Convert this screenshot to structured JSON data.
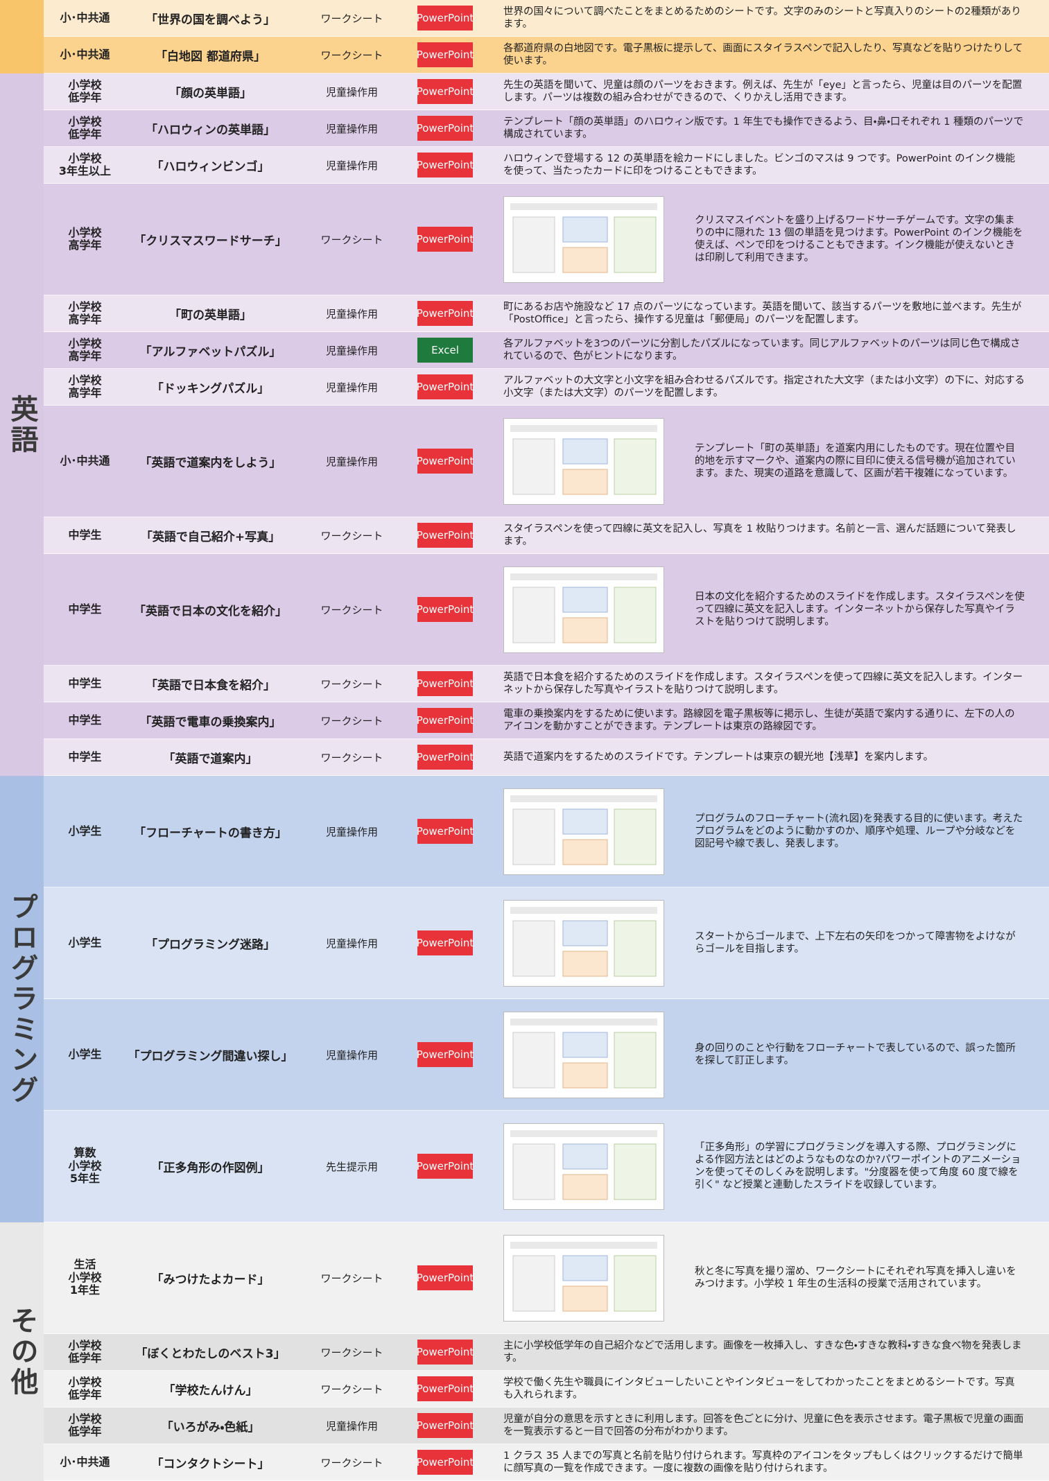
{
  "sections": [
    {
      "rows": [
        {
          "level": "小･中共通",
          "title": "「世界の国を調べよう」",
          "type": "ワークシート",
          "app": "PowerPoint",
          "description": "世界の国々について調べたことをまとめるためのシートです。文字のみのシートと写真入りのシートの2種類があります。"
        },
        {
          "level": "小･中共通",
          "title": "「白地図 都道府県」",
          "type": "ワークシート",
          "app": "PowerPoint",
          "description": "各都道府県の白地図です。電子黒板に提示して、画面にスタイラスペンで記入したり、写真などを貼りつけたりして使います。"
        }
      ]
    },
    {
      "label": "英語",
      "rows": [
        {
          "level": "小学校\n低学年",
          "title": "「顔の英単語」",
          "type": "児童操作用",
          "app": "PowerPoint",
          "description": "先生の英語を聞いて、児童は顔のパーツをおきます。例えば、先生が「eye」と言ったら、児童は目のパーツを配置します。パーツは複数の組み合わせができるので、くりかえし活用できます。"
        },
        {
          "level": "小学校\n低学年",
          "title": "「ハロウィンの英単語」",
          "type": "児童操作用",
          "app": "PowerPoint",
          "description": "テンプレート「顔の英単語」のハロウィン版です。1 年生でも操作できるよう、目・鼻・口それぞれ 1 種類のパーツで構成されています。"
        },
        {
          "level": "小学校\n3年生以上",
          "title": "「ハロウィンビンゴ」",
          "type": "児童操作用",
          "app": "PowerPoint",
          "description": "ハロウィンで登場する 12 の英単語を絵カードにしました。ビンゴのマスは 9 つです。PowerPoint のインク機能を使って、当たったカードに印をつけることもできます。"
        },
        {
          "level": "小学校\n高学年",
          "title": "「クリスマスワードサーチ」",
          "type": "ワークシート",
          "app": "PowerPoint",
          "thumbnail": true,
          "description": "クリスマスイベントを盛り上げるワードサーチゲームです。文字の集まりの中に隠れた 13 個の単語を見つけます。PowerPoint のインク機能を使えば、ペンで印をつけることもできます。インク機能が使えないときは印刷して利用できます。"
        },
        {
          "level": "小学校\n高学年",
          "title": "「町の英単語」",
          "type": "児童操作用",
          "app": "PowerPoint",
          "description": "町にあるお店や施設など 17 点のパーツになっています。英語を聞いて、該当するパーツを敷地に並べます。先生が「PostOffice」と言ったら、操作する児童は「郵便局」のパーツを配置します。"
        },
        {
          "level": "小学校\n高学年",
          "title": "「アルファベットパズル」",
          "type": "児童操作用",
          "app": "Excel",
          "description": "各アルファベットを3つのパーツに分割したパズルになっています。同じアルファベットのパーツは同じ色で構成されているので、色がヒントになります。"
        },
        {
          "level": "小学校\n高学年",
          "title": "「ドッキングパズル」",
          "type": "児童操作用",
          "app": "PowerPoint",
          "description": "アルファベットの大文字と小文字を組み合わせるパズルです。指定された大文字（または小文字）の下に、対応する小文字（または大文字）のパーツを配置します。"
        },
        {
          "level": "小･中共通",
          "title": "「英語で道案内をしよう」",
          "type": "児童操作用",
          "app": "PowerPoint",
          "thumbnail": true,
          "description": "テンプレート「町の英単語」を道案内用にしたものです。現在位置や目的地を示すマークや、道案内の際に目印に使える信号機が追加されています。また、現実の道路を意識して、区画が若干複雑になっています。"
        },
        {
          "level": "中学生",
          "title": "「英語で自己紹介+写真」",
          "type": "ワークシート",
          "app": "PowerPoint",
          "description": "スタイラスペンを使って四線に英文を記入し、写真を 1 枚貼りつけます。名前と一言、選んだ話題について発表します。"
        },
        {
          "level": "中学生",
          "title": "「英語で日本の文化を紹介」",
          "type": "ワークシート",
          "app": "PowerPoint",
          "thumbnail": true,
          "description": "日本の文化を紹介するためのスライドを作成します。スタイラスペンを使って四線に英文を記入します。インターネットから保存した写真やイラストを貼りつけて説明します。"
        },
        {
          "level": "中学生",
          "title": "「英語で日本食を紹介」",
          "type": "ワークシート",
          "app": "PowerPoint",
          "description": "英語で日本食を紹介するためのスライドを作成します。スタイラスペンを使って四線に英文を記入します。インターネットから保存した写真やイラストを貼りつけて説明します。"
        },
        {
          "level": "中学生",
          "title": "「英語で電車の乗換案内」",
          "type": "ワークシート",
          "app": "PowerPoint",
          "description": "電車の乗換案内をするために使います。路線図を電子黒板等に掲示し、生徒が英語で案内する通りに、左下の人のアイコンを動かすことができます。テンプレートは東京の路線図です。"
        },
        {
          "level": "中学生",
          "title": "「英語で道案内」",
          "type": "ワークシート",
          "app": "PowerPoint",
          "description": "英語で道案内をするためのスライドです。テンプレートは東京の観光地【浅草】を案内します。"
        }
      ]
    },
    {
      "label": "プログラミング",
      "rows": [
        {
          "level": "小学生",
          "title": "「フローチャートの書き方」",
          "type": "児童操作用",
          "app": "PowerPoint",
          "thumbnail": true,
          "description": "プログラムのフローチャート(流れ図)を発表する目的に使います。考えたプログラムをどのように動かすのか、順序や処理、ループや分岐などを図記号や線で表し、発表します。"
        },
        {
          "level": "小学生",
          "title": "「プログラミング迷路」",
          "type": "児童操作用",
          "app": "PowerPoint",
          "thumbnail": true,
          "description": "スタートからゴールまで、上下左右の矢印をつかって障害物をよけながらゴールを目指します。"
        },
        {
          "level": "小学生",
          "title": "「プログラミング間違い探し」",
          "type": "児童操作用",
          "app": "PowerPoint",
          "thumbnail": true,
          "description": "身の回りのことや行動をフローチャートで表しているので、誤った箇所を探して訂正します。"
        },
        {
          "level": "算数\n小学校\n5年生",
          "title": "「正多角形の作図例」",
          "type": "先生提示用",
          "app": "PowerPoint",
          "thumbnail": true,
          "description": "「正多角形」の学習にプログラミングを導入する際、プログラミングによる作図方法とはどのようなものなのか?パワーポイントのアニメーションを使ってそのしくみを説明します。\"分度器を使って角度 60 度で線を引く\" など授業と連動したスライドを収録しています。"
        }
      ]
    },
    {
      "label": "その他",
      "rows": [
        {
          "level": "生活\n小学校\n1年生",
          "title": "「みつけたよカード」",
          "type": "ワークシート",
          "app": "PowerPoint",
          "thumbnail": true,
          "description": "秋と冬に写真を撮り溜め、ワークシートにそれぞれ写真を挿入し違いをみつけます。小学校 1 年生の生活科の授業で活用されています。"
        },
        {
          "level": "小学校\n低学年",
          "title": "「ぼくとわたしのベスト3」",
          "type": "ワークシート",
          "app": "PowerPoint",
          "description": "主に小学校低学年の自己紹介などで活用します。画像を一枚挿入し、すきな色・すきな教科・すきな食べ物を発表します。"
        },
        {
          "level": "小学校\n低学年",
          "title": "「学校たんけん」",
          "type": "ワークシート",
          "app": "PowerPoint",
          "description": "学校で働く先生や職員にインタビューしたいことやインタビューをしてわかったことをまとめるシートです。写真も入れられます。"
        },
        {
          "level": "小学校\n低学年",
          "title": "「いろがみ・色紙」",
          "type": "児童操作用",
          "app": "PowerPoint",
          "description": "児童が自分の意思を示すときに利用します。回答を色ごとに分け、児童に色を表示させます。電子黒板で児童の画面を一覧表示すると一目で回答の分布がわかります。"
        },
        {
          "level": "小･中共通",
          "title": "「コンタクトシート」",
          "type": "ワークシート",
          "app": "PowerPoint",
          "description": "1 クラス 35 人までの写真と名前を貼り付けられます。写真枠のアイコンをタップもしくはクリックするだけで簡単に顔写真の一覧を作成できます。一度に複数の画像を貼り付けられます。"
        }
      ]
    }
  ]
}
